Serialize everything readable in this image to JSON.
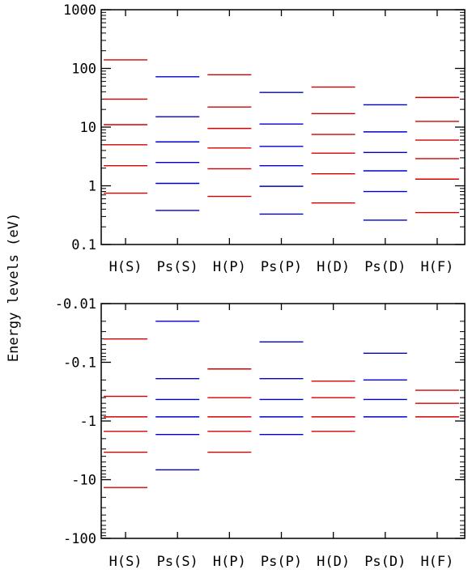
{
  "ylabel": "Energy levels (eV)",
  "colors": {
    "hydrogen": "#d40000",
    "positronium": "#0000cc",
    "axis": "#000000"
  },
  "chart_data": [
    {
      "type": "levels",
      "yscale": "log",
      "ylim": [
        0.1,
        1000
      ],
      "yticks": [
        0.1,
        1,
        10,
        100,
        1000
      ],
      "yticklabels": [
        "0.1",
        "1",
        "10",
        "100",
        "1000"
      ],
      "categories": [
        "H(S)",
        "Ps(S)",
        "H(P)",
        "Ps(P)",
        "H(D)",
        "Ps(D)",
        "H(F)"
      ],
      "category_colors": [
        "hydrogen",
        "positronium",
        "hydrogen",
        "positronium",
        "hydrogen",
        "positronium",
        "hydrogen"
      ],
      "levels": [
        [
          0.75,
          2.2,
          5,
          11,
          30,
          140
        ],
        [
          0.38,
          1.1,
          2.5,
          5.6,
          15,
          72
        ],
        [
          0.66,
          1.95,
          4.4,
          9.5,
          22,
          78
        ],
        [
          0.33,
          0.98,
          2.2,
          4.7,
          11.3,
          39
        ],
        [
          0.51,
          1.6,
          3.6,
          7.5,
          17,
          48
        ],
        [
          0.26,
          0.8,
          1.8,
          3.7,
          8.3,
          24
        ],
        [
          0.35,
          1.3,
          2.9,
          6,
          12.5,
          32
        ]
      ]
    },
    {
      "type": "levels",
      "yscale": "symlog-negative",
      "ylim": [
        -100,
        -0.01
      ],
      "yticks": [
        -0.01,
        -0.1,
        -1,
        -10,
        -100
      ],
      "yticklabels": [
        "-0.01",
        "-0.1",
        "-1",
        "-10",
        "-100"
      ],
      "categories": [
        "H(S)",
        "Ps(S)",
        "H(P)",
        "Ps(P)",
        "H(D)",
        "Ps(D)",
        "H(F)"
      ],
      "category_colors": [
        "hydrogen",
        "positronium",
        "hydrogen",
        "positronium",
        "hydrogen",
        "positronium",
        "hydrogen"
      ],
      "levels": [
        [
          -0.04,
          -0.38,
          -0.85,
          -1.5,
          -3.4,
          -13.6
        ],
        [
          -0.02,
          -0.19,
          -0.43,
          -0.85,
          -1.7,
          -6.8
        ],
        [
          -0.13,
          -0.4,
          -0.85,
          -1.5,
          -3.4
        ],
        [
          -0.045,
          -0.19,
          -0.43,
          -0.85,
          -1.7
        ],
        [
          -0.21,
          -0.4,
          -0.85,
          -1.5
        ],
        [
          -0.07,
          -0.2,
          -0.43,
          -0.85
        ],
        [
          -0.3,
          -0.5,
          -0.85
        ]
      ]
    }
  ]
}
